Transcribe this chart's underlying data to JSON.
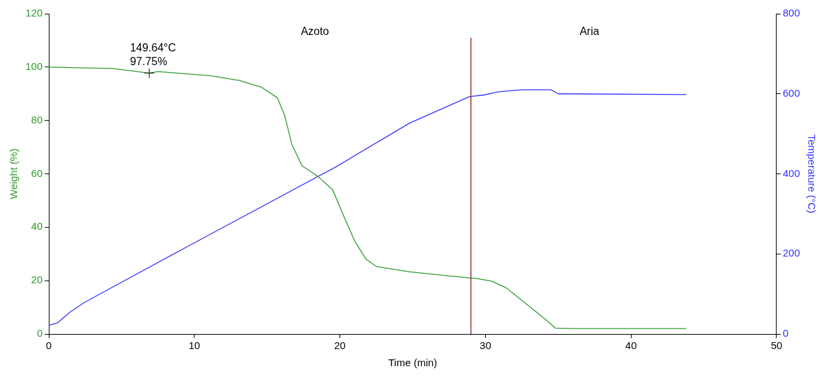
{
  "chart_data": {
    "type": "line",
    "xlabel": "Time (min)",
    "ylabel": "Weight (%)",
    "y2label": "Temperature (°C)",
    "xlim": [
      0,
      50
    ],
    "xticks": [
      0,
      10,
      20,
      30,
      40,
      50
    ],
    "ylim": [
      0,
      120
    ],
    "yticks": [
      0,
      20,
      40,
      60,
      80,
      100,
      120
    ],
    "y2lim": [
      0,
      800
    ],
    "y2ticks": [
      0,
      200,
      400,
      600,
      800
    ],
    "grid": false,
    "legend": false,
    "marker": "none",
    "line_style": "solid",
    "series": [
      {
        "color": "#2e9a2e",
        "x": [
          0,
          4.4,
          6.9,
          7.5,
          11.1,
          13.1,
          14.6,
          15.7,
          16.2,
          16.7,
          17.4,
          18.5,
          19.5,
          20.2,
          21,
          21.8,
          22.5,
          24.8,
          27.4,
          29.4,
          30.4,
          31.4,
          33,
          34.3,
          34.8,
          36,
          43.8
        ],
        "values": [
          100,
          99.5,
          97.75,
          98.3,
          96.8,
          95,
          92.5,
          88.5,
          82,
          71,
          63,
          59,
          54,
          45,
          35,
          28,
          25.3,
          23.3,
          21.8,
          20.8,
          19.8,
          17.4,
          10.4,
          4.7,
          2.2,
          2,
          2
        ]
      },
      {
        "color": "#3333ff",
        "axis": "y2",
        "x": [
          0,
          0.6,
          1.4,
          2.4,
          9.5,
          19.7,
          24.8,
          28.9,
          29.9,
          30.9,
          32.5,
          34.5,
          35,
          43.8
        ],
        "values": [
          21,
          28,
          53,
          78,
          218,
          417,
          527,
          593,
          597,
          605,
          610,
          610,
          600,
          598
        ]
      }
    ],
    "ref_lines": [
      {
        "axis": "x",
        "value": 29,
        "color": "#8b1a1a"
      }
    ],
    "annotations": [
      {
        "text": "149.64°C\n97.75%",
        "x": 6.9,
        "y": 97.75
      },
      "Azoto",
      "Aria"
    ]
  }
}
